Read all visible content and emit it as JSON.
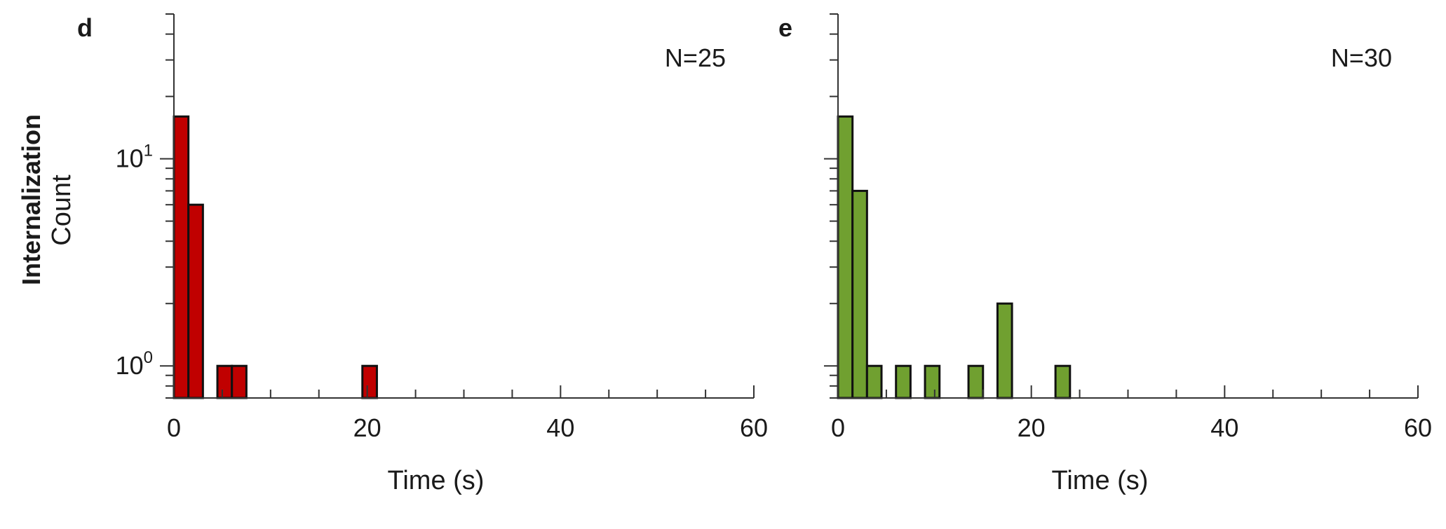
{
  "row_label": "Internalization",
  "chart_data": [
    {
      "type": "bar",
      "panel_label": "d",
      "annotation": "N=25",
      "xlabel": "Time (s)",
      "ylabel": "Count",
      "y_scale": "log",
      "xlim": [
        0,
        60
      ],
      "ylim": [
        0.7,
        50
      ],
      "x_ticks": [
        "0",
        "20",
        "40",
        "60"
      ],
      "y_ticks": [
        {
          "base": "10",
          "exp": "1",
          "value": 10
        },
        {
          "base": "10",
          "exp": "0",
          "value": 1
        }
      ],
      "bin_width": 1.5,
      "bins": [
        {
          "start": 0.0,
          "count": 16
        },
        {
          "start": 1.5,
          "count": 6
        },
        {
          "start": 4.5,
          "count": 1
        },
        {
          "start": 6.0,
          "count": 1
        },
        {
          "start": 19.5,
          "count": 1
        }
      ],
      "bar_color": "#c00000",
      "grid": false,
      "legend": "none"
    },
    {
      "type": "bar",
      "panel_label": "e",
      "annotation": "N=30",
      "xlabel": "Time (s)",
      "ylabel": "",
      "y_scale": "log",
      "xlim": [
        0,
        60
      ],
      "ylim": [
        0.7,
        50
      ],
      "x_ticks": [
        "0",
        "20",
        "40",
        "60"
      ],
      "y_ticks": [],
      "bin_width": 1.5,
      "bins": [
        {
          "start": 0.0,
          "count": 16
        },
        {
          "start": 1.5,
          "count": 7
        },
        {
          "start": 3.0,
          "count": 1
        },
        {
          "start": 6.0,
          "count": 1
        },
        {
          "start": 9.0,
          "count": 1
        },
        {
          "start": 13.5,
          "count": 1
        },
        {
          "start": 16.5,
          "count": 2
        },
        {
          "start": 22.5,
          "count": 1
        }
      ],
      "bar_color": "#70a030",
      "grid": false,
      "legend": "none"
    }
  ]
}
